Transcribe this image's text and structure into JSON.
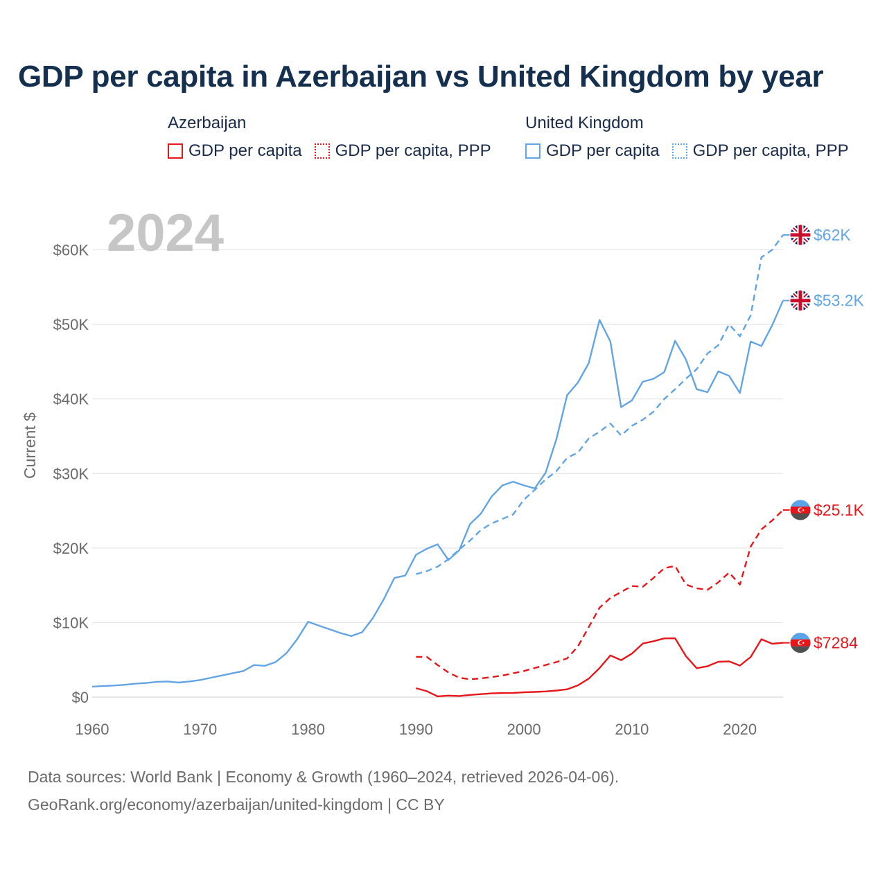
{
  "colors": {
    "azerbaijan": "#e8161b",
    "uk": "#62a4e4",
    "grid": "#e6e6e6",
    "axis": "#6b6b6b",
    "year": "#c6c6c6"
  },
  "legend": {
    "groups": [
      {
        "country": "Azerbaijan",
        "color": "#e8161b",
        "items": [
          {
            "label": "GDP per capita",
            "style": "solid"
          },
          {
            "label": "GDP per capita, PPP",
            "style": "dotted"
          }
        ]
      },
      {
        "country": "United Kingdom",
        "color": "#62a4e4",
        "items": [
          {
            "label": "GDP per capita",
            "style": "solid"
          },
          {
            "label": "GDP per capita, PPP",
            "style": "dotted"
          }
        ]
      }
    ]
  },
  "year_label": "2024",
  "source": {
    "line1": "Data sources: World Bank | Economy & Growth (1960–2024, retrieved 2026-04-06).",
    "line2": "GeoRank.org/economy/azerbaijan/united-kingdom | CC BY"
  },
  "chart_data": {
    "type": "line",
    "title": "GDP per capita in Azerbaijan vs United Kingdom by year",
    "xlabel": "",
    "ylabel": "Current $",
    "xlim": [
      1960,
      2024
    ],
    "ylim": [
      0,
      64000
    ],
    "x_ticks": [
      1960,
      1970,
      1980,
      1990,
      2000,
      2010,
      2020
    ],
    "x_tick_labels": [
      "1960",
      "1970",
      "1980",
      "1990",
      "2000",
      "2010",
      "2020"
    ],
    "y_ticks": [
      0,
      10000,
      20000,
      30000,
      40000,
      50000,
      60000
    ],
    "y_tick_labels": [
      "$0",
      "$10K",
      "$20K",
      "$30K",
      "$40K",
      "$50K",
      "$60K"
    ],
    "grid": true,
    "legend_position": "top",
    "series": [
      {
        "name": "United Kingdom GDP per capita, PPP",
        "country": "uk",
        "dashed": true,
        "end_label": "$62K",
        "x": [
          1990,
          1991,
          1992,
          1993,
          1994,
          1995,
          1996,
          1997,
          1998,
          1999,
          2000,
          2001,
          2002,
          2003,
          2004,
          2005,
          2006,
          2007,
          2008,
          2009,
          2010,
          2011,
          2012,
          2013,
          2014,
          2015,
          2016,
          2017,
          2018,
          2019,
          2020,
          2021,
          2022,
          2023,
          2024
        ],
        "values": [
          16500,
          16900,
          17500,
          18500,
          19800,
          21000,
          22400,
          23300,
          23900,
          24500,
          26500,
          27800,
          29200,
          30300,
          32100,
          32800,
          34700,
          35600,
          36700,
          35100,
          36400,
          37200,
          38300,
          40000,
          41300,
          42700,
          44000,
          46100,
          47200,
          50000,
          48400,
          51200,
          59000,
          60000,
          62000
        ]
      },
      {
        "name": "United Kingdom GDP per capita",
        "country": "uk",
        "dashed": false,
        "end_label": "$53.2K",
        "x": [
          1960,
          1961,
          1962,
          1963,
          1964,
          1965,
          1966,
          1967,
          1968,
          1969,
          1970,
          1971,
          1972,
          1973,
          1974,
          1975,
          1976,
          1977,
          1978,
          1979,
          1980,
          1981,
          1982,
          1983,
          1984,
          1985,
          1986,
          1987,
          1988,
          1989,
          1990,
          1991,
          1992,
          1993,
          1994,
          1995,
          1996,
          1997,
          1998,
          1999,
          2000,
          2001,
          2002,
          2003,
          2004,
          2005,
          2006,
          2007,
          2008,
          2009,
          2010,
          2011,
          2012,
          2013,
          2014,
          2015,
          2016,
          2017,
          2018,
          2019,
          2020,
          2021,
          2022,
          2023,
          2024
        ],
        "values": [
          1400,
          1500,
          1550,
          1650,
          1800,
          1900,
          2050,
          2100,
          1950,
          2100,
          2300,
          2600,
          2900,
          3200,
          3500,
          4300,
          4200,
          4700,
          5900,
          7800,
          10100,
          9600,
          9100,
          8600,
          8200,
          8700,
          10600,
          13100,
          16000,
          16300,
          19100,
          19900,
          20500,
          18400,
          19700,
          23200,
          24600,
          26900,
          28400,
          28900,
          28400,
          28000,
          30100,
          34600,
          40500,
          42200,
          44800,
          50600,
          47700,
          38900,
          39800,
          42300,
          42700,
          43600,
          47800,
          45300,
          41300,
          40900,
          43700,
          43100,
          40800,
          47700,
          47100,
          49900,
          53200
        ]
      },
      {
        "name": "Azerbaijan GDP per capita, PPP",
        "country": "azerbaijan",
        "dashed": true,
        "end_label": "$25.1K",
        "x": [
          1990,
          1991,
          1992,
          1993,
          1994,
          1995,
          1996,
          1997,
          1998,
          1999,
          2000,
          2001,
          2002,
          2003,
          2004,
          2005,
          2006,
          2007,
          2008,
          2009,
          2010,
          2011,
          2012,
          2013,
          2014,
          2015,
          2016,
          2017,
          2018,
          2019,
          2020,
          2021,
          2022,
          2023,
          2024
        ],
        "values": [
          5400,
          5400,
          4300,
          3300,
          2600,
          2400,
          2500,
          2700,
          2900,
          3200,
          3500,
          3900,
          4300,
          4700,
          5200,
          6800,
          9400,
          12000,
          13300,
          14100,
          14900,
          14800,
          16000,
          17300,
          17600,
          15100,
          14600,
          14400,
          15400,
          16700,
          15100,
          20200,
          22500,
          23700,
          25100
        ]
      },
      {
        "name": "Azerbaijan GDP per capita",
        "country": "azerbaijan",
        "dashed": false,
        "end_label": "$7284",
        "x": [
          1990,
          1991,
          1992,
          1993,
          1994,
          1995,
          1996,
          1997,
          1998,
          1999,
          2000,
          2001,
          2002,
          2003,
          2004,
          2005,
          2006,
          2007,
          2008,
          2009,
          2010,
          2011,
          2012,
          2013,
          2014,
          2015,
          2016,
          2017,
          2018,
          2019,
          2020,
          2021,
          2022,
          2023,
          2024
        ],
        "values": [
          1200,
          800,
          100,
          200,
          150,
          300,
          400,
          500,
          550,
          570,
          650,
          700,
          760,
          880,
          1050,
          1580,
          2480,
          3900,
          5600,
          4950,
          5840,
          7190,
          7500,
          7880,
          7890,
          5500,
          3880,
          4150,
          4740,
          4800,
          4230,
          5390,
          7760,
          7160,
          7284
        ]
      }
    ]
  }
}
